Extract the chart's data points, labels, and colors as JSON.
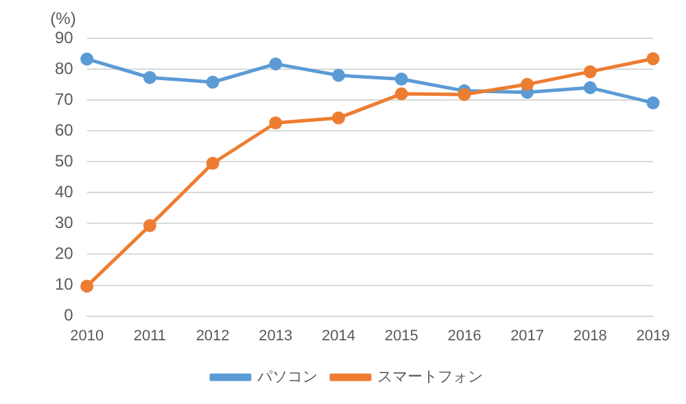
{
  "chart_data": {
    "type": "line",
    "ylabel": "(%)",
    "categories": [
      "2010",
      "2011",
      "2012",
      "2013",
      "2014",
      "2015",
      "2016",
      "2017",
      "2018",
      "2019"
    ],
    "series": [
      {
        "name": "パソコン",
        "color": "#5b9bd5",
        "values": [
          83.3,
          77.3,
          75.8,
          81.7,
          78.0,
          76.8,
          73.0,
          72.5,
          74.0,
          69.1
        ]
      },
      {
        "name": "スマートフォン",
        "color": "#ed7d31",
        "values": [
          9.7,
          29.3,
          49.5,
          62.6,
          64.2,
          72.0,
          71.8,
          75.1,
          79.2,
          83.4
        ]
      }
    ],
    "ylim": [
      0,
      90
    ],
    "yticks": [
      0,
      10,
      20,
      30,
      40,
      50,
      60,
      70,
      80,
      90
    ],
    "grid": "y",
    "legend": "bottom",
    "marker": "circle",
    "line_style": "solid"
  }
}
